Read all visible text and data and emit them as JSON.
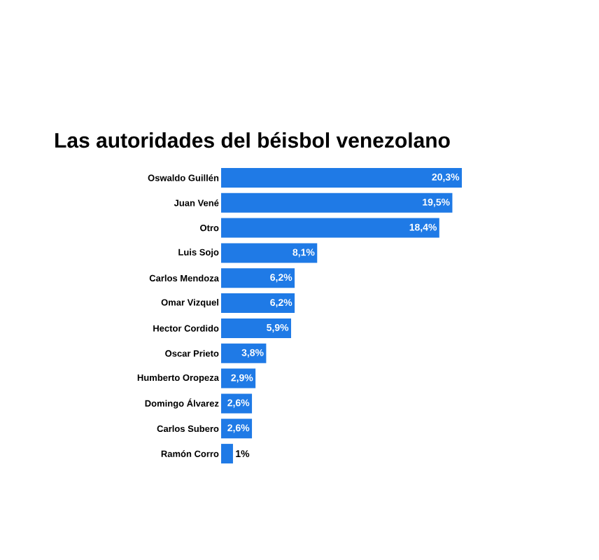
{
  "chart_data": {
    "type": "bar",
    "orientation": "horizontal",
    "title": "Las autoridades del béisbol venezolano",
    "categories": [
      "Oswaldo Guillén",
      "Juan Vené",
      "Otro",
      "Luis Sojo",
      "Carlos Mendoza",
      "Omar Vizquel",
      "Hector Cordido",
      "Oscar Prieto",
      "Humberto Oropeza",
      "Domingo Álvarez",
      "Carlos Subero",
      "Ramón Corro"
    ],
    "values": [
      20.3,
      19.5,
      18.4,
      8.1,
      6.2,
      6.2,
      5.9,
      3.8,
      2.9,
      2.6,
      2.6,
      1
    ],
    "value_labels": [
      "20,3%",
      "19,5%",
      "18,4%",
      "8,1%",
      "6,2%",
      "6,2%",
      "5,9%",
      "3,8%",
      "2,9%",
      "2,6%",
      "2,6%",
      "1%"
    ],
    "color": "#1f7ae6"
  }
}
